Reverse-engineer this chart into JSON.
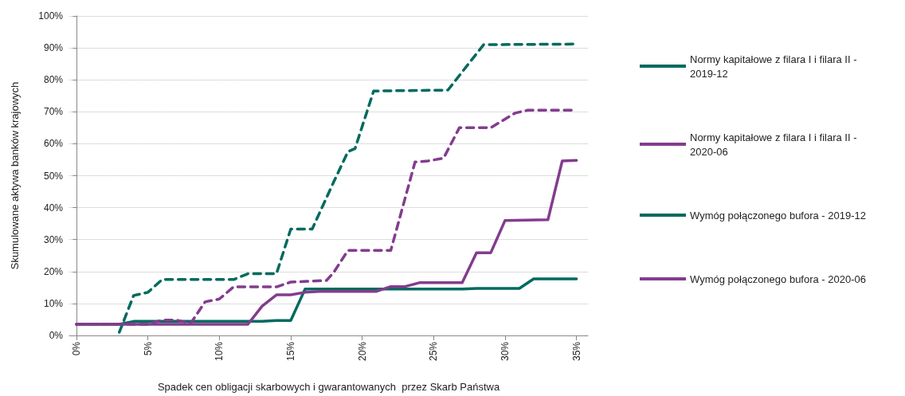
{
  "chart_data": {
    "type": "line",
    "xlabel": "Spadek cen obligacji skarbowych i gwarantowanych  przez Skarb Państwa",
    "ylabel": "Skumulowane aktywa banków krajowych",
    "xlim": [
      -0.5,
      35.8
    ],
    "xticks": [
      {
        "value": 0,
        "label": "0%"
      },
      {
        "value": 5,
        "label": "5%"
      },
      {
        "value": 10,
        "label": "10%"
      },
      {
        "value": 15,
        "label": "15%"
      },
      {
        "value": 20,
        "label": "20%"
      },
      {
        "value": 25,
        "label": "25%"
      },
      {
        "value": 30,
        "label": "30%"
      },
      {
        "value": 35,
        "label": "35%"
      }
    ],
    "ylim": [
      0,
      100
    ],
    "yticks": [
      {
        "value": 0,
        "label": "0%"
      },
      {
        "value": 10,
        "label": "10%"
      },
      {
        "value": 20,
        "label": "20%"
      },
      {
        "value": 30,
        "label": "30%"
      },
      {
        "value": 40,
        "label": "40%"
      },
      {
        "value": 50,
        "label": "50%"
      },
      {
        "value": 60,
        "label": "60%"
      },
      {
        "value": 70,
        "label": "70%"
      },
      {
        "value": 80,
        "label": "80%"
      },
      {
        "value": 90,
        "label": "90%"
      },
      {
        "value": 100,
        "label": "100%"
      }
    ],
    "grid": "y",
    "legend": "right",
    "marker": "none",
    "series": [
      {
        "name": "Normy kapitałowe z filara I i filara II - 2019-12",
        "color": "#006a5f",
        "line_style": "solid",
        "x": [
          0,
          3,
          4,
          13,
          14,
          15,
          16,
          27,
          28,
          31,
          32,
          35
        ],
        "values": [
          3.5,
          3.5,
          4.4,
          4.4,
          4.7,
          4.7,
          14.5,
          14.5,
          14.7,
          14.7,
          17.7,
          17.7
        ]
      },
      {
        "name": "Normy kapitałowe z filara I i filara II - 2020-06",
        "color": "#833c8e",
        "line_style": "solid",
        "x": [
          0,
          12,
          13,
          14,
          15,
          16,
          17,
          21,
          22,
          23,
          24,
          27,
          28,
          29,
          30,
          33,
          34,
          35
        ],
        "values": [
          3.5,
          3.5,
          9.2,
          12.7,
          12.7,
          13.5,
          13.8,
          13.8,
          15.3,
          15.3,
          16.5,
          16.5,
          25.9,
          25.9,
          36,
          36.2,
          54.6,
          54.8
        ]
      },
      {
        "name": "Wymóg połączonego bufora - 2019-12",
        "color": "#006a5f",
        "line_style": "dashed",
        "x": [
          3,
          4,
          5,
          6,
          11,
          12,
          14,
          15,
          16.5,
          18,
          19,
          19.5,
          20.8,
          26,
          28.5,
          35
        ],
        "values": [
          1,
          12.5,
          13.5,
          17.5,
          17.5,
          19.3,
          19.3,
          33.3,
          33.3,
          48,
          57.5,
          58.5,
          76.5,
          76.8,
          91,
          91.2
        ]
      },
      {
        "name": "Wymóg połączonego bufora - 2020-06",
        "color": "#833c8e",
        "line_style": "dashed",
        "x": [
          0,
          5,
          6,
          7,
          8,
          9,
          10,
          11,
          14,
          15,
          17.5,
          18,
          19,
          22,
          23.7,
          24.6,
          25.7,
          26.8,
          29,
          30.7,
          31.6,
          35
        ],
        "values": [
          3.5,
          3.5,
          4.8,
          4.8,
          3.8,
          10.5,
          11.4,
          15.2,
          15.2,
          16.7,
          17.2,
          19.7,
          26.6,
          26.6,
          54.3,
          54.6,
          55.5,
          65,
          65,
          69.6,
          70.5,
          70.5
        ]
      }
    ]
  }
}
